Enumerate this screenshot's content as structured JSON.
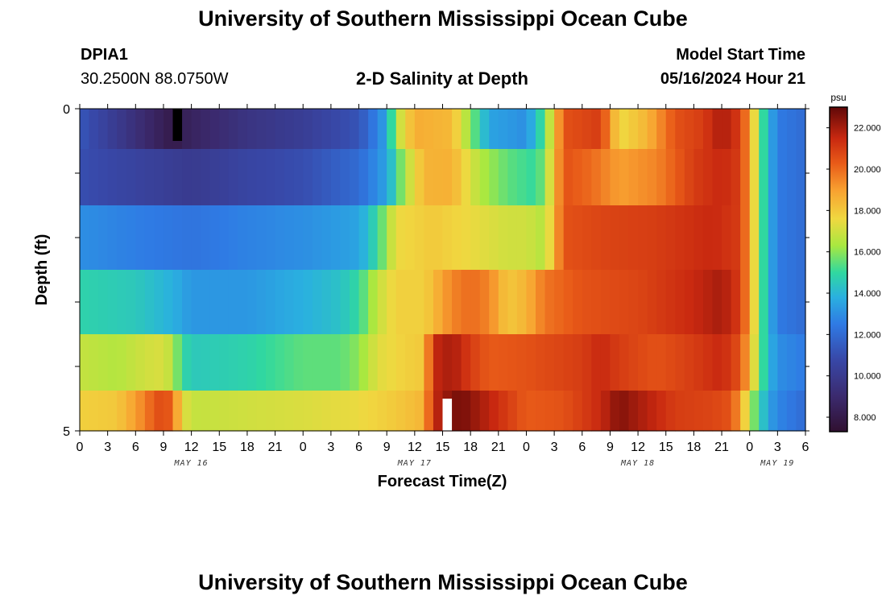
{
  "page": {
    "title": "University of Southern Mississippi Ocean Cube",
    "footer_title": "University of Southern Mississippi Ocean Cube"
  },
  "station": {
    "id": "DPIA1",
    "coords": "30.2500N  88.0750W"
  },
  "chart_heading": "2-D Salinity at Depth",
  "model": {
    "label": "Model Start Time",
    "value": "05/16/2024 Hour 21"
  },
  "chart_data": {
    "type": "heatmap",
    "title": "2-D Salinity at Depth",
    "xlabel": "Forecast Time(Z)",
    "ylabel": "Depth (ft)",
    "x_hours_from_may16_00z": [
      0,
      78
    ],
    "x_ticks": [
      "0",
      "3",
      "6",
      "9",
      "12",
      "15",
      "18",
      "21",
      "0",
      "3",
      "6",
      "9",
      "12",
      "15",
      "18",
      "21",
      "0",
      "3",
      "6",
      "9",
      "12",
      "15",
      "18",
      "21",
      "0",
      "3",
      "6"
    ],
    "date_labels": [
      {
        "label": "MAY 16",
        "hour": 12
      },
      {
        "label": "MAY 17",
        "hour": 36
      },
      {
        "label": "MAY 18",
        "hour": 60
      },
      {
        "label": "MAY 19",
        "hour": 75
      }
    ],
    "y_range_ft": [
      0,
      5
    ],
    "y_tick_labels": [
      {
        "depth": 0,
        "label": "0"
      },
      {
        "depth": 5,
        "label": "5"
      }
    ],
    "colorbar": {
      "unit": "psu",
      "range": [
        7.3,
        23.0
      ],
      "ticks": [
        "8.000",
        "10.000",
        "12.000",
        "14.000",
        "16.000",
        "18.000",
        "20.000",
        "22.000"
      ],
      "tick_values": [
        8,
        10,
        12,
        14,
        16,
        18,
        20,
        22
      ],
      "stops": [
        {
          "v": 7.3,
          "c": "#301030"
        },
        {
          "v": 9.0,
          "c": "#3b2a6e"
        },
        {
          "v": 10.8,
          "c": "#3848a8"
        },
        {
          "v": 12.5,
          "c": "#2f7ae4"
        },
        {
          "v": 13.8,
          "c": "#2ab0e0"
        },
        {
          "v": 15.0,
          "c": "#30d8a0"
        },
        {
          "v": 16.3,
          "c": "#a8e840"
        },
        {
          "v": 17.6,
          "c": "#f0d840"
        },
        {
          "v": 19.0,
          "c": "#f8a030"
        },
        {
          "v": 20.3,
          "c": "#e85a18"
        },
        {
          "v": 21.5,
          "c": "#c82810"
        },
        {
          "v": 23.0,
          "c": "#600808"
        }
      ]
    },
    "layer_depths_ft": [
      0.25,
      1.0,
      2.0,
      3.0,
      4.0,
      4.75
    ],
    "series": [
      {
        "name": "layer 0.25 ft",
        "keyframes": [
          [
            0,
            11.3
          ],
          [
            4,
            10.0
          ],
          [
            7,
            9.0
          ],
          [
            10,
            8.0
          ],
          [
            12,
            8.6
          ],
          [
            18,
            9.6
          ],
          [
            24,
            10.2
          ],
          [
            30,
            11.2
          ],
          [
            33,
            13.5
          ],
          [
            34,
            16.5
          ],
          [
            36,
            18.7
          ],
          [
            40,
            18.4
          ],
          [
            42,
            16.0
          ],
          [
            44,
            13.5
          ],
          [
            48,
            13.0
          ],
          [
            50,
            15.5
          ],
          [
            52,
            20.5
          ],
          [
            56,
            21.0
          ],
          [
            58,
            17.5
          ],
          [
            61,
            18.5
          ],
          [
            64,
            20.5
          ],
          [
            67,
            21.0
          ],
          [
            69,
            22.0
          ],
          [
            71,
            21.0
          ],
          [
            72,
            19.0
          ],
          [
            73,
            16.0
          ],
          [
            74,
            14.0
          ],
          [
            75,
            12.5
          ],
          [
            78,
            12.0
          ]
        ]
      },
      {
        "name": "layer 1.0 ft",
        "keyframes": [
          [
            0,
            11.0
          ],
          [
            6,
            10.5
          ],
          [
            12,
            10.0
          ],
          [
            18,
            10.6
          ],
          [
            24,
            11.0
          ],
          [
            30,
            12.0
          ],
          [
            33,
            13.5
          ],
          [
            35,
            16.5
          ],
          [
            37,
            18.5
          ],
          [
            40,
            18.6
          ],
          [
            43,
            16.5
          ],
          [
            46,
            15.5
          ],
          [
            49,
            15.0
          ],
          [
            50,
            16.0
          ],
          [
            52,
            20.5
          ],
          [
            55,
            20.0
          ],
          [
            58,
            19.0
          ],
          [
            62,
            19.5
          ],
          [
            66,
            21.0
          ],
          [
            69,
            21.5
          ],
          [
            71,
            21.0
          ],
          [
            72,
            19.0
          ],
          [
            73,
            16.0
          ],
          [
            74,
            14.0
          ],
          [
            75,
            12.5
          ],
          [
            78,
            12.0
          ]
        ]
      },
      {
        "name": "layer 2.0 ft",
        "keyframes": [
          [
            0,
            13.0
          ],
          [
            6,
            12.6
          ],
          [
            12,
            12.3
          ],
          [
            18,
            12.7
          ],
          [
            24,
            13.0
          ],
          [
            30,
            13.5
          ],
          [
            32,
            15.0
          ],
          [
            34,
            17.5
          ],
          [
            38,
            18.0
          ],
          [
            42,
            17.5
          ],
          [
            46,
            17.0
          ],
          [
            48,
            17.0
          ],
          [
            50,
            16.5
          ],
          [
            52,
            20.5
          ],
          [
            56,
            20.8
          ],
          [
            62,
            21.0
          ],
          [
            68,
            21.5
          ],
          [
            71,
            21.0
          ],
          [
            72,
            19.0
          ],
          [
            73,
            16.0
          ],
          [
            74,
            14.0
          ],
          [
            75,
            12.5
          ],
          [
            78,
            12.0
          ]
        ]
      },
      {
        "name": "layer 3.0 ft",
        "keyframes": [
          [
            0,
            14.8
          ],
          [
            6,
            14.5
          ],
          [
            10,
            13.8
          ],
          [
            12,
            13.2
          ],
          [
            18,
            13.2
          ],
          [
            24,
            13.8
          ],
          [
            28,
            14.3
          ],
          [
            30,
            15.0
          ],
          [
            32,
            16.8
          ],
          [
            34,
            17.8
          ],
          [
            37,
            17.8
          ],
          [
            40,
            19.5
          ],
          [
            42,
            20.0
          ],
          [
            44,
            19.5
          ],
          [
            46,
            18.0
          ],
          [
            48,
            18.5
          ],
          [
            50,
            19.8
          ],
          [
            54,
            20.5
          ],
          [
            60,
            20.8
          ],
          [
            66,
            21.5
          ],
          [
            69,
            22.0
          ],
          [
            71,
            21.0
          ],
          [
            72,
            19.0
          ],
          [
            73,
            16.0
          ],
          [
            74,
            14.0
          ],
          [
            75,
            12.5
          ],
          [
            78,
            12.0
          ]
        ]
      },
      {
        "name": "layer 4.0 ft",
        "keyframes": [
          [
            0,
            16.8
          ],
          [
            4,
            16.5
          ],
          [
            7,
            17.0
          ],
          [
            9,
            17.2
          ],
          [
            10,
            16.5
          ],
          [
            11,
            15.0
          ],
          [
            12,
            14.5
          ],
          [
            18,
            14.8
          ],
          [
            24,
            15.5
          ],
          [
            28,
            15.5
          ],
          [
            30,
            16.0
          ],
          [
            32,
            17.3
          ],
          [
            35,
            17.8
          ],
          [
            37,
            18.0
          ],
          [
            38,
            21.5
          ],
          [
            40,
            22.0
          ],
          [
            42,
            21.0
          ],
          [
            44,
            20.3
          ],
          [
            48,
            20.5
          ],
          [
            54,
            21.0
          ],
          [
            56,
            21.5
          ],
          [
            58,
            21.0
          ],
          [
            62,
            20.5
          ],
          [
            66,
            21.0
          ],
          [
            69,
            21.5
          ],
          [
            71,
            20.5
          ],
          [
            72,
            18.5
          ],
          [
            73,
            16.0
          ],
          [
            74,
            14.0
          ],
          [
            75,
            13.0
          ],
          [
            78,
            12.5
          ]
        ]
      },
      {
        "name": "layer 4.75 ft",
        "keyframes": [
          [
            0,
            17.8
          ],
          [
            4,
            18.0
          ],
          [
            6,
            19.0
          ],
          [
            8,
            20.3
          ],
          [
            9,
            20.8
          ],
          [
            10,
            20.0
          ],
          [
            11,
            17.5
          ],
          [
            12,
            16.8
          ],
          [
            18,
            17.0
          ],
          [
            24,
            17.2
          ],
          [
            30,
            17.5
          ],
          [
            34,
            18.0
          ],
          [
            36,
            18.3
          ],
          [
            37,
            18.5
          ],
          [
            38,
            21.5
          ],
          [
            40,
            22.5
          ],
          [
            41,
            22.7
          ],
          [
            43,
            22.0
          ],
          [
            46,
            21.0
          ],
          [
            48,
            20.3
          ],
          [
            52,
            20.5
          ],
          [
            56,
            21.5
          ],
          [
            58,
            22.5
          ],
          [
            60,
            22.0
          ],
          [
            64,
            21.0
          ],
          [
            68,
            20.8
          ],
          [
            70,
            20.5
          ],
          [
            71,
            19.0
          ],
          [
            72,
            16.5
          ],
          [
            73,
            15.0
          ],
          [
            74,
            13.5
          ],
          [
            75,
            12.8
          ],
          [
            78,
            12.0
          ]
        ]
      }
    ],
    "missing_markers": [
      {
        "hour": 10,
        "depth_band": [
          0,
          0.5
        ],
        "color": "#000000"
      },
      {
        "hour": 39,
        "depth_band": [
          4.5,
          5
        ],
        "color": "#ffffff"
      }
    ]
  }
}
